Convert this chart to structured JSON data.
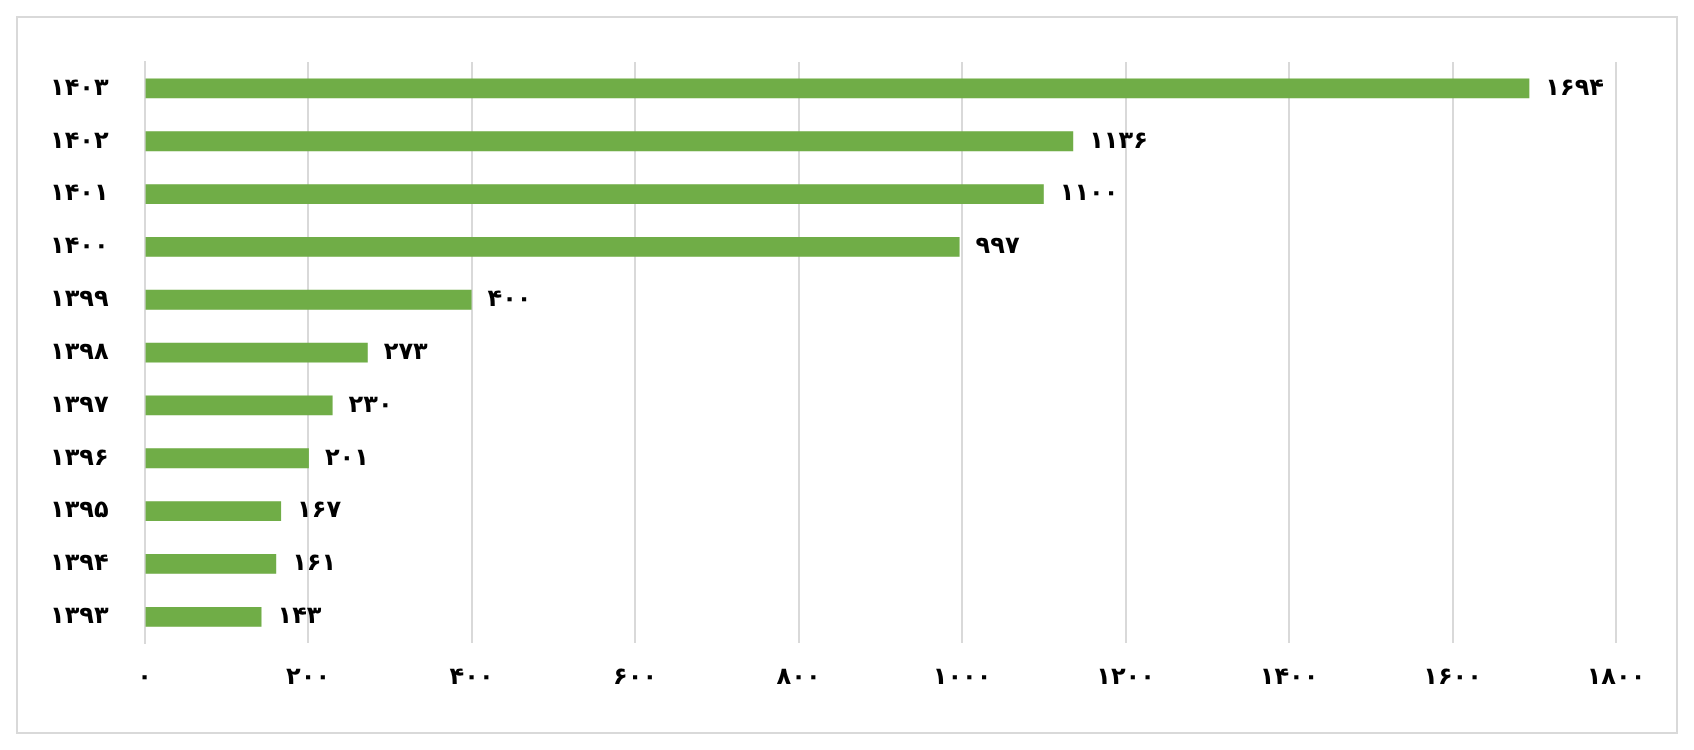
{
  "chart_data": {
    "type": "bar",
    "orientation": "horizontal",
    "categories": [
      "۱۴۰۳",
      "۱۴۰۲",
      "۱۴۰۱",
      "۱۴۰۰",
      "۱۳۹۹",
      "۱۳۹۸",
      "۱۳۹۷",
      "۱۳۹۶",
      "۱۳۹۵",
      "۱۳۹۴",
      "۱۳۹۳"
    ],
    "values": [
      1694,
      1136,
      1100,
      997,
      400,
      273,
      230,
      201,
      167,
      161,
      143
    ],
    "value_labels": [
      "۱۶۹۴",
      "۱۱۳۶",
      "۱۱۰۰",
      "۹۹۷",
      "۴۰۰",
      "۲۷۳",
      "۲۳۰",
      "۲۰۱",
      "۱۶۷",
      "۱۶۱",
      "۱۴۳"
    ],
    "color": "#70ad47",
    "xlim": [
      0,
      1800
    ],
    "xticks": [
      {
        "value": 0,
        "label": "۰"
      },
      {
        "value": 200,
        "label": "۲۰۰"
      },
      {
        "value": 400,
        "label": "۴۰۰"
      },
      {
        "value": 600,
        "label": "۶۰۰"
      },
      {
        "value": 800,
        "label": "۸۰۰"
      },
      {
        "value": 1000,
        "label": "۱۰۰۰"
      },
      {
        "value": 1200,
        "label": "۱۲۰۰"
      },
      {
        "value": 1400,
        "label": "۱۴۰۰"
      },
      {
        "value": 1600,
        "label": "۱۶۰۰"
      },
      {
        "value": 1800,
        "label": "۱۸۰۰"
      }
    ],
    "grid": "x"
  }
}
